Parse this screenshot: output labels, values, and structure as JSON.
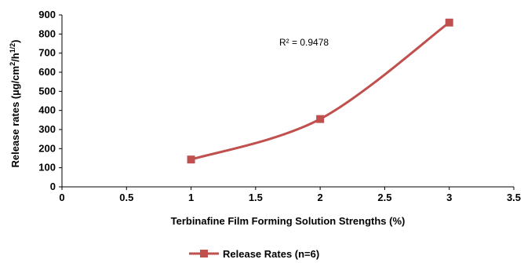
{
  "chart_data": {
    "type": "line",
    "xlabel": "Terbinafine Film Forming Solution Strengths (%)",
    "ylabel_parts": {
      "base": "Release rates (µg/cm",
      "sup1": "2",
      "mid": "/h",
      "sup2": "1/2",
      "end": ")"
    },
    "xlim": [
      0,
      3.5
    ],
    "ylim": [
      0,
      900
    ],
    "x_ticks": [
      0,
      0.5,
      1,
      1.5,
      2,
      2.5,
      3,
      3.5
    ],
    "y_ticks": [
      0,
      100,
      200,
      300,
      400,
      500,
      600,
      700,
      800,
      900
    ],
    "series": [
      {
        "name": "Release Rates (n=6)",
        "color": "#c0504d",
        "marker": "square",
        "smooth": true,
        "points": [
          {
            "x": 1,
            "y": 143
          },
          {
            "x": 2,
            "y": 355
          },
          {
            "x": 3,
            "y": 860
          }
        ]
      }
    ],
    "annotation": "R² = 0.9478",
    "legend_position": "bottom-center",
    "grid": false
  }
}
